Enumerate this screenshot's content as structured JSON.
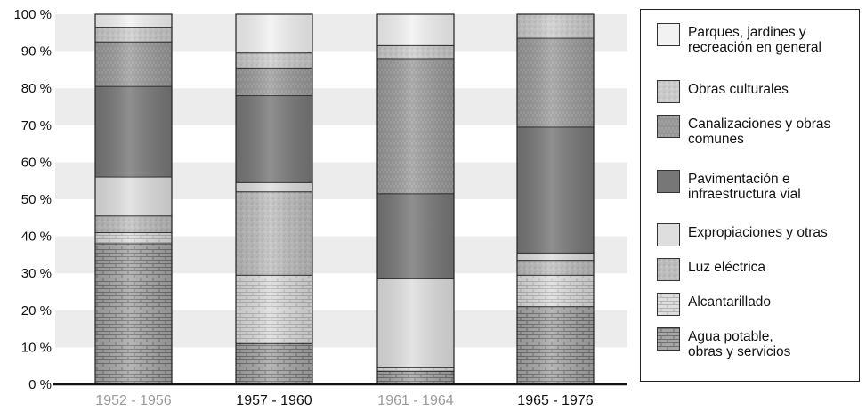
{
  "chart_data": {
    "type": "bar",
    "stacked": true,
    "normalized_percent": true,
    "categories": [
      "1952 - 1956",
      "1957 - 1960",
      "1961 - 1964",
      "1965 - 1976"
    ],
    "category_label_colors": [
      "#9a9a9a",
      "#111111",
      "#9a9a9a",
      "#111111"
    ],
    "y_tick_labels": [
      "0 %",
      "10 %",
      "20 %",
      "30 %",
      "40 %",
      "50 %",
      "60 %",
      "70 %",
      "80 %",
      "90 %",
      "100 %"
    ],
    "ylim": [
      0,
      100
    ],
    "grid": "alternating horizontal bands",
    "legend_position": "right",
    "series": [
      {
        "name": "Agua potable,\nobras y servicios",
        "fill": "#a8a8a8",
        "pattern": "bricks-dark",
        "values": [
          38,
          11,
          3.5,
          21
        ]
      },
      {
        "name": "Alcantarillado",
        "fill": "#dcdcdc",
        "pattern": "bricks-light",
        "values": [
          3,
          18.5,
          1,
          8.5
        ]
      },
      {
        "name": "Luz eléctrica",
        "fill": "#bdbdbd",
        "pattern": "grain",
        "values": [
          4.5,
          22.5,
          0,
          4
        ]
      },
      {
        "name": "Expropiaciones y otras",
        "fill": "#dedede",
        "pattern": "plain",
        "values": [
          10.5,
          2.5,
          24,
          2
        ]
      },
      {
        "name": "Pavimentación e\ninfraestructura vial",
        "fill": "#777777",
        "pattern": "plain",
        "values": [
          24.5,
          23.5,
          23,
          34
        ]
      },
      {
        "name": "Canalizaciones y obras\ncomunes",
        "fill": "#a0a0a0",
        "pattern": "vertical-grain",
        "values": [
          12,
          7.5,
          36.5,
          24
        ]
      },
      {
        "name": "Obras culturales",
        "fill": "#c8c8c8",
        "pattern": "grain",
        "values": [
          4,
          4,
          3.5,
          6.5
        ]
      },
      {
        "name": "Parques, jardines y\nrecreación en general",
        "fill": "#f2f2f2",
        "pattern": "plain",
        "values": [
          3.5,
          10.5,
          8.5,
          0
        ]
      }
    ]
  }
}
